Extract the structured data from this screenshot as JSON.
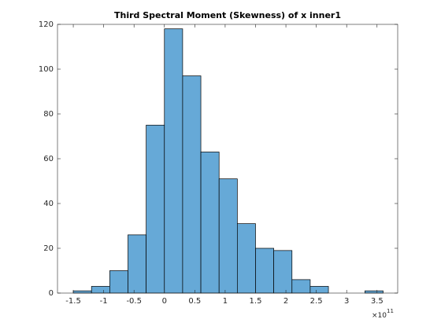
{
  "chart_data": {
    "type": "histogram",
    "title": "Third Spectral Moment (Skewness) of x inner1",
    "bins": [
      -1.5,
      -1.2,
      -0.9,
      -0.6,
      -0.3,
      0,
      0.3,
      0.6,
      0.9,
      1.2,
      1.5,
      1.8,
      2.1,
      2.4,
      2.7,
      3.0,
      3.3,
      3.6
    ],
    "values": [
      1,
      3,
      10,
      26,
      75,
      118,
      97,
      63,
      51,
      31,
      20,
      19,
      6,
      3,
      0,
      0,
      1
    ],
    "color": "#66a9d7",
    "xlim": [
      -1.76,
      3.84
    ],
    "xticks": [
      -1.5,
      -1,
      -0.5,
      0,
      0.5,
      1,
      1.5,
      2,
      2.5,
      3,
      3.5
    ],
    "x_exponent_base": "×10",
    "x_exponent": "11",
    "ylim": [
      0,
      120
    ],
    "yticks": [
      0,
      20,
      40,
      60,
      80,
      100,
      120
    ],
    "grid": false
  }
}
